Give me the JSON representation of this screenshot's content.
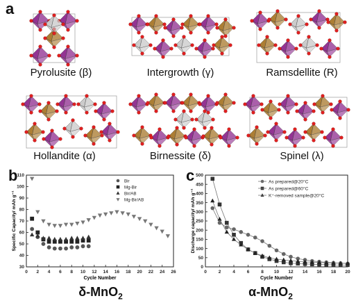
{
  "panel_a": {
    "label": "a",
    "structures": [
      {
        "name": "Pyrolusite (β)"
      },
      {
        "name": "Intergrowth (γ)"
      },
      {
        "name": "Ramsdellite (R)"
      },
      {
        "name": "Hollandite (α)"
      },
      {
        "name": "Birnessite (δ)"
      },
      {
        "name": "Spinel (λ)"
      }
    ],
    "colors": {
      "purple": "#8e2a8e",
      "gold": "#a8782a",
      "grey": "#c9c9c9",
      "oxygen": "#e02020"
    }
  },
  "panel_b": {
    "label": "b",
    "caption": "δ-MnO",
    "caption_sub": "2"
  },
  "panel_c": {
    "label": "c",
    "caption": "α-MnO",
    "caption_sub": "2"
  },
  "chart_data": [
    {
      "type": "scatter",
      "xlabel": "Cycle Number",
      "ylabel": "Specific Capacity/ mAh g⁻¹",
      "xlim": [
        0,
        26
      ],
      "ylim": [
        30,
        110
      ],
      "xticks": [
        0,
        2,
        4,
        6,
        8,
        10,
        12,
        14,
        16,
        18,
        20,
        22,
        24,
        26
      ],
      "yticks": [
        30,
        40,
        50,
        60,
        70,
        80,
        90,
        100,
        110
      ],
      "legend_position": "top-right",
      "series": [
        {
          "name": "Bir",
          "marker": "circle",
          "x": [
            1,
            2,
            3,
            4,
            5,
            6,
            7,
            8,
            9,
            10,
            11
          ],
          "y": [
            63,
            56,
            50,
            47,
            46,
            46,
            46,
            47,
            47,
            48,
            48
          ]
        },
        {
          "name": "Mg-Bir",
          "marker": "square",
          "x": [
            1,
            2,
            3,
            4,
            5,
            6,
            7,
            8,
            9,
            10,
            11
          ],
          "y": [
            72,
            60,
            54,
            52,
            52,
            52,
            52,
            52,
            52,
            53,
            53
          ]
        },
        {
          "name": "Bir/AB",
          "marker": "triangle-up",
          "x": [
            1,
            2,
            3,
            4,
            5,
            6,
            7,
            8,
            9,
            10,
            11
          ],
          "y": [
            58,
            57,
            55,
            55,
            54,
            54,
            54,
            55,
            55,
            55,
            56
          ]
        },
        {
          "name": "Mg-Bir/AB",
          "marker": "triangle-down",
          "x": [
            1,
            2,
            3,
            4,
            5,
            6,
            7,
            8,
            9,
            10,
            11,
            12,
            13,
            14,
            15,
            16,
            17,
            18,
            19,
            20,
            21,
            22,
            23,
            24,
            25
          ],
          "y": [
            107,
            78,
            70,
            67,
            66,
            66,
            67,
            67,
            68,
            69,
            71,
            73,
            75,
            76,
            77,
            78,
            77,
            76,
            74,
            72,
            70,
            67,
            64,
            61,
            57
          ]
        }
      ]
    },
    {
      "type": "scatter",
      "xlabel": "Cycle Number",
      "ylabel": "Discharge capacity/ mAh g⁻¹",
      "xlim": [
        0,
        20
      ],
      "ylim": [
        0,
        500
      ],
      "xticks": [
        0,
        2,
        4,
        6,
        8,
        10,
        12,
        14,
        16,
        18,
        20
      ],
      "yticks": [
        0,
        50,
        100,
        150,
        200,
        250,
        300,
        350,
        400,
        450,
        500
      ],
      "legend_position": "top-right",
      "series": [
        {
          "name": "As prepared@20°C",
          "marker": "circle",
          "x": [
            1,
            2,
            3,
            4,
            5,
            6,
            7,
            8,
            9,
            10,
            11,
            12,
            13,
            14,
            15,
            16,
            17,
            18,
            19,
            20
          ],
          "y": [
            320,
            240,
            215,
            205,
            190,
            175,
            160,
            140,
            115,
            90,
            70,
            55,
            45,
            38,
            32,
            28,
            25,
            22,
            20,
            18
          ]
        },
        {
          "name": "As prepared@60°C",
          "marker": "square",
          "x": [
            1,
            2,
            3,
            4,
            5,
            6,
            7,
            8,
            9,
            10,
            11,
            12,
            13,
            14,
            15,
            16,
            17,
            18,
            19,
            20
          ],
          "y": [
            480,
            340,
            240,
            175,
            130,
            95,
            75,
            55,
            42,
            32,
            25,
            20,
            18,
            16,
            14,
            13,
            12,
            11,
            10,
            10
          ]
        },
        {
          "name": "K⁺-removed sample@20°C",
          "marker": "triangle-up",
          "x": [
            1,
            2,
            3,
            4,
            5,
            6,
            7,
            8,
            9,
            10,
            11,
            12,
            13,
            14,
            15,
            16,
            17,
            18,
            19,
            20
          ],
          "y": [
            360,
            260,
            190,
            150,
            120,
            95,
            75,
            60,
            50,
            42,
            38,
            34,
            30,
            27,
            25,
            24,
            22,
            21,
            20,
            20
          ]
        }
      ]
    }
  ]
}
